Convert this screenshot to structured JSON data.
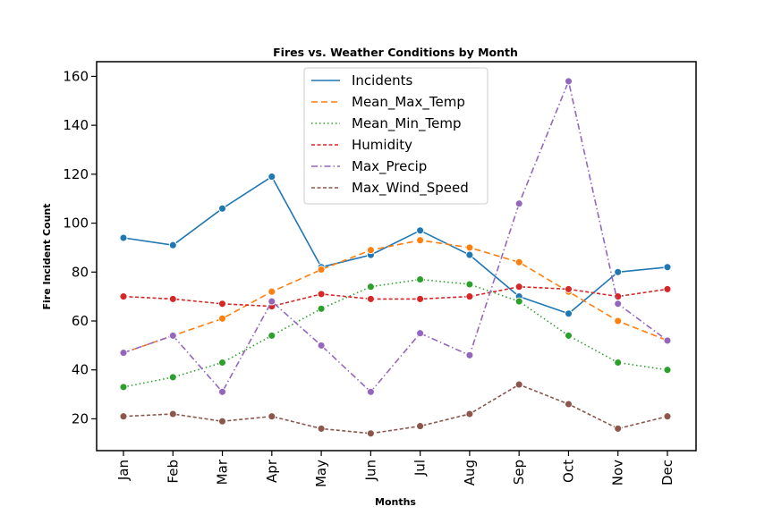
{
  "chart_data": {
    "type": "line",
    "title": "Fires vs. Weather Conditions by Month",
    "xlabel": "Months",
    "ylabel": "Fire Incident Count",
    "categories": [
      "Jan",
      "Feb",
      "Mar",
      "Apr",
      "May",
      "Jun",
      "Jul",
      "Aug",
      "Sep",
      "Oct",
      "Nov",
      "Dec"
    ],
    "ylim": [
      7,
      166
    ],
    "yticks": [
      20,
      40,
      60,
      80,
      100,
      120,
      140,
      160
    ],
    "grid": false,
    "legend_position": "top-center",
    "series": [
      {
        "name": "Incidents",
        "color": "#1f77b4",
        "dash": "solid",
        "values": [
          94,
          91,
          106,
          119,
          82,
          87,
          97,
          87,
          70,
          63,
          80,
          82
        ]
      },
      {
        "name": "Mean_Max_Temp",
        "color": "#ff7f0e",
        "dash": "dashed",
        "values": [
          47,
          54,
          61,
          72,
          81,
          89,
          93,
          90,
          84,
          72,
          60,
          52
        ]
      },
      {
        "name": "Mean_Min_Temp",
        "color": "#2ca02c",
        "dash": "dotted",
        "values": [
          33,
          37,
          43,
          54,
          65,
          74,
          77,
          75,
          68,
          54,
          43,
          40
        ]
      },
      {
        "name": "Humidity",
        "color": "#d62728",
        "dash": "short-dashed",
        "values": [
          70,
          69,
          67,
          66,
          71,
          69,
          69,
          70,
          74,
          73,
          70,
          73
        ]
      },
      {
        "name": "Max_Precip",
        "color": "#9467bd",
        "dash": "dash-dot",
        "values": [
          47,
          54,
          31,
          68,
          50,
          31,
          55,
          46,
          108,
          158,
          67,
          52
        ]
      },
      {
        "name": "Max_Wind_Speed",
        "color": "#8c564b",
        "dash": "short-dashed",
        "values": [
          21,
          22,
          19,
          21,
          16,
          14,
          17,
          22,
          34,
          26,
          16,
          21
        ]
      }
    ]
  }
}
